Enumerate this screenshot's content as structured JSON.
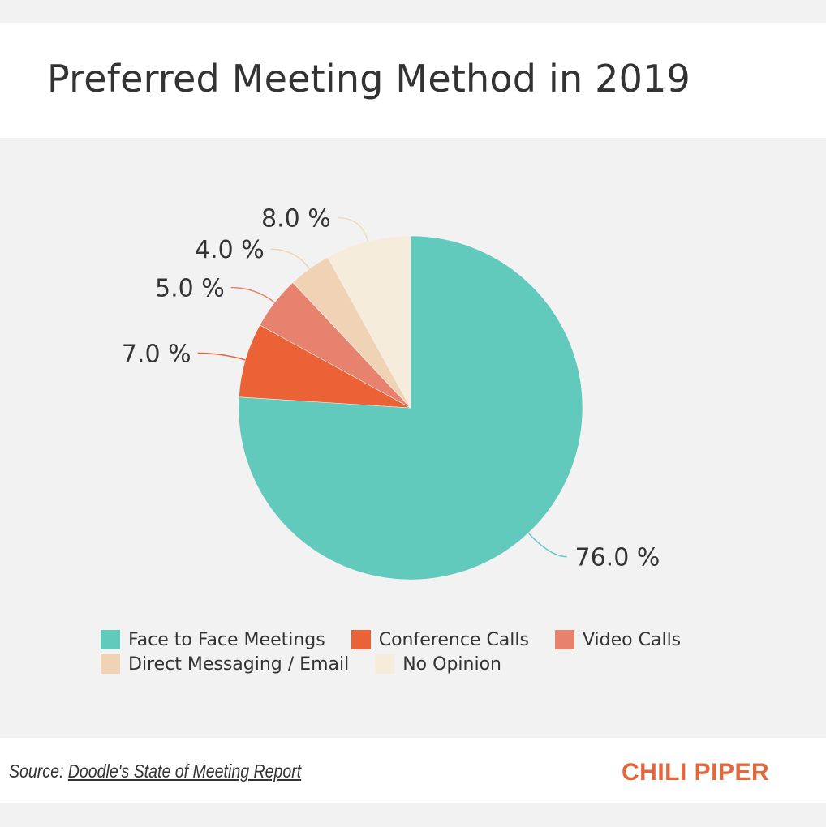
{
  "chart_data": {
    "type": "pie",
    "title": "Preferred Meeting Method in 2019",
    "start": "top-clockwise",
    "slices": [
      {
        "label": "Face to Face Meetings",
        "value": 76.0,
        "display": "76.0 %",
        "color": "#62c9bd"
      },
      {
        "label": "Conference Calls",
        "value": 7.0,
        "display": "7.0 %",
        "color": "#ec6237"
      },
      {
        "label": "Video Calls",
        "value": 5.0,
        "display": "5.0 %",
        "color": "#e6826d"
      },
      {
        "label": "Direct Messaging / Email",
        "value": 4.0,
        "display": "4.0 %",
        "color": "#f0d3b5"
      },
      {
        "label": "No Opinion",
        "value": 8.0,
        "display": "8.0 %",
        "color": "#f5ecdc"
      }
    ],
    "legend_position": "bottom"
  },
  "footer": {
    "source_prefix": "Source:",
    "source_link": "Doodle's State of Meeting Report",
    "brand": "CHILI PIPER"
  }
}
